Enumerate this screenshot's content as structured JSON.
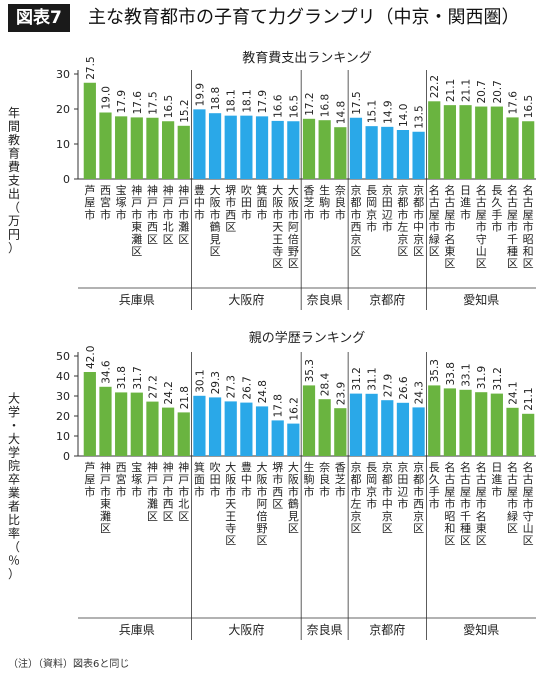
{
  "figure": {
    "badge": "図表7",
    "title": "主な教育都市の子育て力グランプリ（中京・関西圏）",
    "note": "（注）（資料）図表6と同じ"
  },
  "colors": {
    "green": "#6ab440",
    "blue": "#2aa8e8",
    "axis": "#333333",
    "text": "#222222"
  },
  "chart_data": [
    {
      "type": "bar",
      "title": "教育費支出ランキング",
      "ylabel": "年間教育費支出（万円）",
      "ylim": [
        0,
        30
      ],
      "yticks": [
        0,
        10,
        20,
        30
      ],
      "categories": [
        "芦屋市",
        "西宮市",
        "宝塚市",
        "神戸市東灘区",
        "神戸市西区",
        "神戸市北区",
        "神戸市灘区",
        "豊中市",
        "大阪市鶴見区",
        "堺市西区",
        "吹田市",
        "箕面市",
        "大阪市天王寺区",
        "大阪市阿倍野区",
        "香芝市",
        "生駒市",
        "奈良市",
        "京都市西京区",
        "長岡京市",
        "京田辺市",
        "京都市左京区",
        "京都市中京区",
        "名古屋市緑区",
        "名古屋市名東区",
        "日進市",
        "名古屋市守山区",
        "長久手市",
        "名古屋市千種区",
        "名古屋市昭和区"
      ],
      "values": [
        27.5,
        19.0,
        17.9,
        17.6,
        17.5,
        16.5,
        15.2,
        19.9,
        18.8,
        18.1,
        18.1,
        17.9,
        16.6,
        16.5,
        17.2,
        16.8,
        14.8,
        17.5,
        15.1,
        14.9,
        14.0,
        13.5,
        22.2,
        21.1,
        21.1,
        20.7,
        20.7,
        17.6,
        16.5
      ],
      "value_labels": [
        "27.5",
        "19.0",
        "17.9",
        "17.6",
        "17.5",
        "16.5",
        "15.2",
        "19.9",
        "18.8",
        "18.1",
        "18.1",
        "17.9",
        "16.6",
        "16.5",
        "17.2",
        "16.8",
        "14.8",
        "17.5",
        "15.1",
        "14.9",
        "14.0",
        "13.5",
        "22.2",
        "21.1",
        "21.1",
        "20.7",
        "20.7",
        "17.6",
        "16.5"
      ],
      "groups": [
        {
          "name": "兵庫県",
          "count": 7,
          "color": "green"
        },
        {
          "name": "大阪府",
          "count": 7,
          "color": "blue"
        },
        {
          "name": "奈良県",
          "count": 3,
          "color": "green"
        },
        {
          "name": "京都府",
          "count": 5,
          "color": "blue"
        },
        {
          "name": "愛知県",
          "count": 7,
          "color": "green"
        }
      ],
      "grid": false
    },
    {
      "type": "bar",
      "title": "親の学歴ランキング",
      "ylabel": "大学・大学院卒業者比率（％）",
      "ylim": [
        0,
        50
      ],
      "yticks": [
        0,
        10,
        20,
        30,
        40,
        50
      ],
      "categories": [
        "芦屋市",
        "神戸市東灘区",
        "西宮市",
        "宝塚市",
        "神戸市灘区",
        "神戸市西区",
        "神戸市北区",
        "箕面市",
        "吹田市",
        "大阪市天王寺区",
        "豊中市",
        "大阪市阿倍野区",
        "堺市西区",
        "大阪市鶴見区",
        "生駒市",
        "奈良市",
        "香芝市",
        "京都市左京区",
        "長岡京市",
        "京都市中京区",
        "京田辺市",
        "京都市西京区",
        "長久手市",
        "名古屋市昭和区",
        "名古屋市千種区",
        "名古屋市名東区",
        "日進市",
        "名古屋市緑区",
        "名古屋市守山区"
      ],
      "values": [
        42.0,
        34.6,
        31.8,
        31.7,
        27.2,
        24.2,
        21.8,
        30.1,
        29.3,
        27.3,
        26.7,
        24.8,
        17.8,
        16.2,
        35.3,
        28.4,
        23.9,
        31.2,
        31.1,
        27.9,
        26.6,
        24.3,
        35.3,
        33.8,
        33.1,
        31.9,
        31.2,
        24.1,
        21.1
      ],
      "value_labels": [
        "42.0",
        "34.6",
        "31.8",
        "31.7",
        "27.2",
        "24.2",
        "21.8",
        "30.1",
        "29.3",
        "27.3",
        "26.7",
        "24.8",
        "17.8",
        "16.2",
        "35.3",
        "28.4",
        "23.9",
        "31.2",
        "31.1",
        "27.9",
        "26.6",
        "24.3",
        "35.3",
        "33.8",
        "33.1",
        "31.9",
        "31.2",
        "24.1",
        "21.1"
      ],
      "groups": [
        {
          "name": "兵庫県",
          "count": 7,
          "color": "green"
        },
        {
          "name": "大阪府",
          "count": 7,
          "color": "blue"
        },
        {
          "name": "奈良県",
          "count": 3,
          "color": "green"
        },
        {
          "name": "京都府",
          "count": 5,
          "color": "blue"
        },
        {
          "name": "愛知県",
          "count": 7,
          "color": "green"
        }
      ],
      "grid": false
    }
  ]
}
